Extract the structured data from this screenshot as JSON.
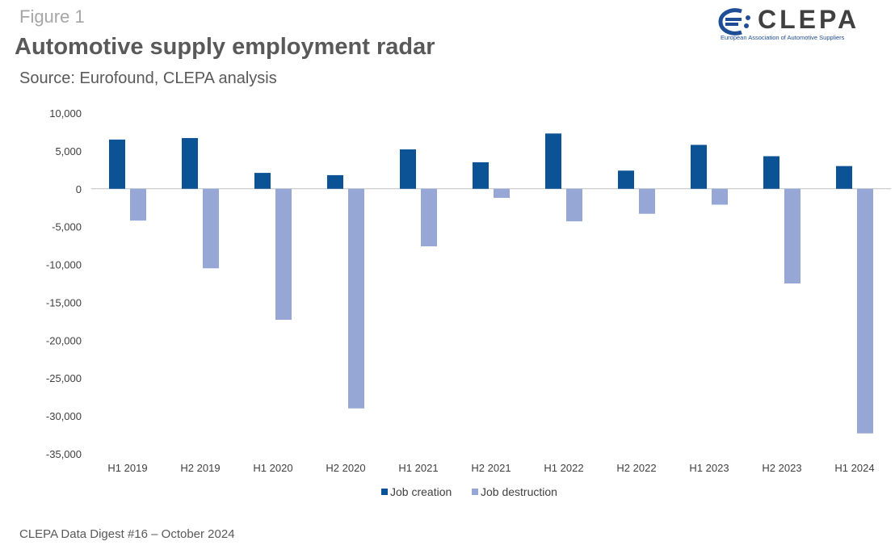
{
  "header": {
    "figure_label": "Figure 1",
    "title": "Automotive supply employment radar",
    "source": "Source: Eurofound, CLEPA analysis"
  },
  "logo": {
    "wordmark": "CLEPA",
    "tagline": "European Association of Automotive Suppliers"
  },
  "footer": {
    "text": "CLEPA Data Digest #16 – October 2024"
  },
  "colors": {
    "job_creation": "#0b5394",
    "job_destruction": "#96a7d6",
    "axis": "#bfbfbf"
  },
  "chart_data": {
    "type": "bar",
    "categories": [
      "H1 2019",
      "H2 2019",
      "H1 2020",
      "H2 2020",
      "H1 2021",
      "H2 2021",
      "H1 2022",
      "H2 2022",
      "H1 2023",
      "H2 2023",
      "H1 2024"
    ],
    "series": [
      {
        "name": "Job creation",
        "values": [
          6500,
          6700,
          2100,
          1800,
          5200,
          3500,
          7300,
          2400,
          5800,
          4300,
          3000
        ]
      },
      {
        "name": "Job destruction",
        "values": [
          -4200,
          -10500,
          -17300,
          -29000,
          -7600,
          -1200,
          -4300,
          -3300,
          -2100,
          -12500,
          -32300
        ]
      }
    ],
    "ylim": [
      -35000,
      10000
    ],
    "yticks": [
      "10,000",
      "5,000",
      "0",
      "-5,000",
      "-10,000",
      "-15,000",
      "-20,000",
      "-25,000",
      "-30,000",
      "-35,000"
    ],
    "ytick_values": [
      10000,
      5000,
      0,
      -5000,
      -10000,
      -15000,
      -20000,
      -25000,
      -30000,
      -35000
    ],
    "legend_position": "bottom",
    "grid": false
  }
}
